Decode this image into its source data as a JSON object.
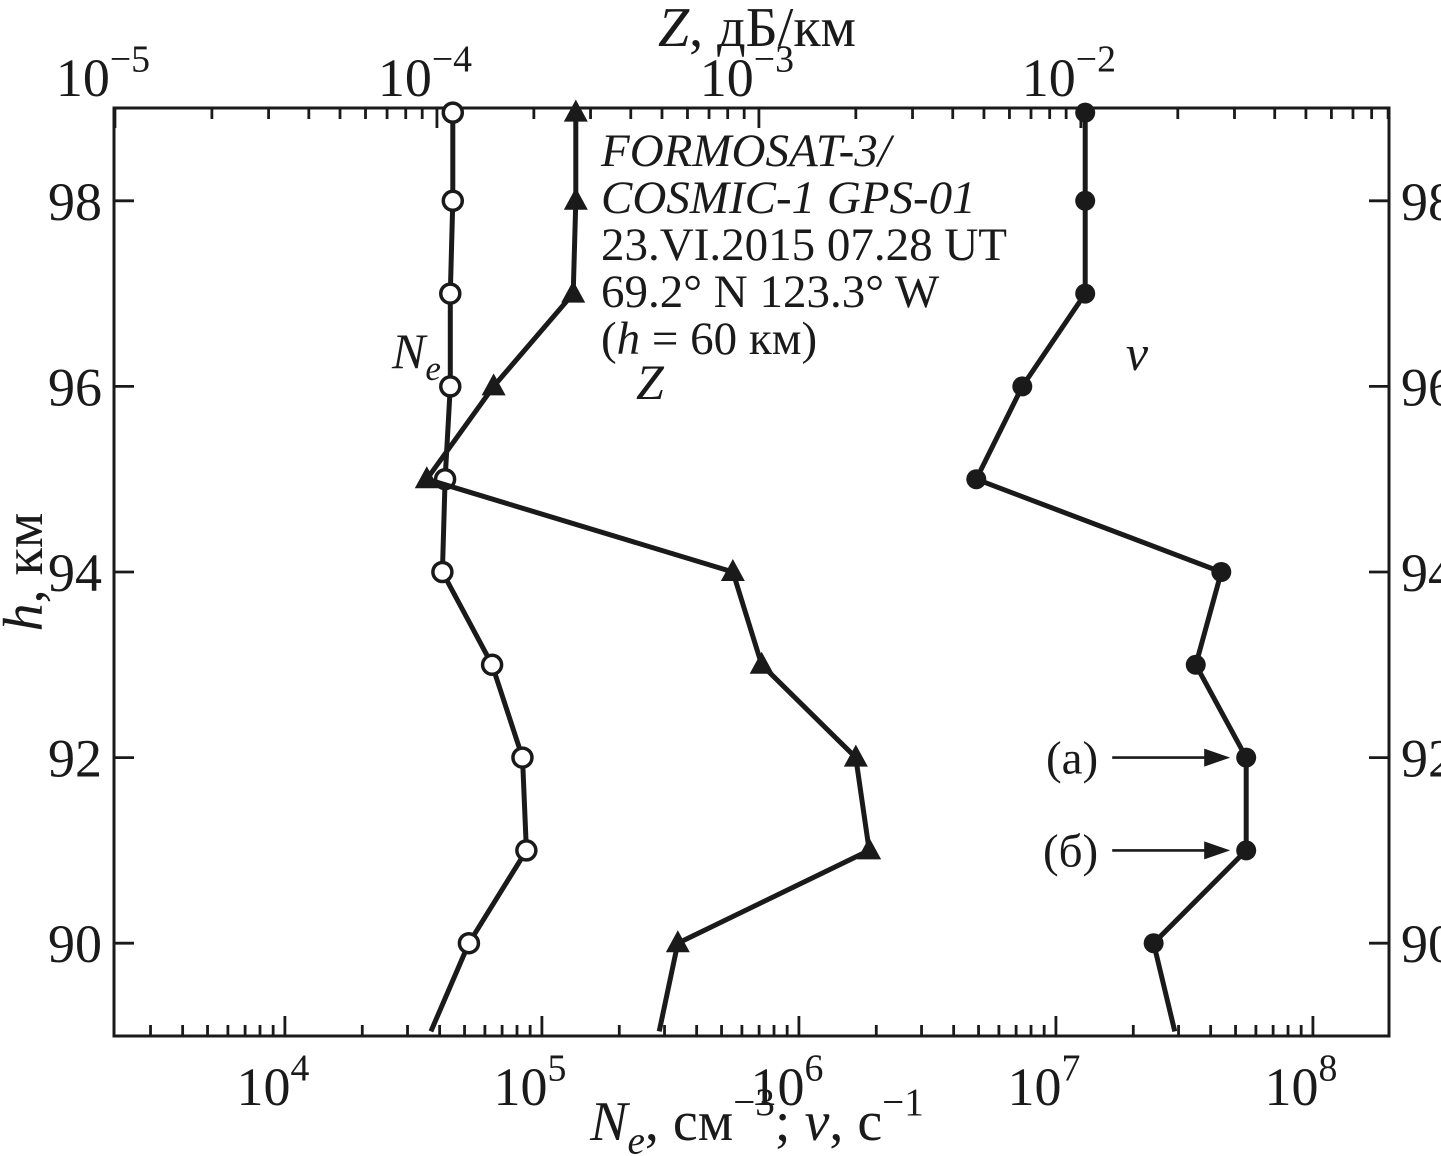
{
  "chart_data": {
    "type": "line",
    "title": "Z, дБ/км",
    "info_box": {
      "lines": [
        [
          {
            "t": "FORMOSAT-3/",
            "i": 1
          }
        ],
        [
          {
            "t": "COSMIC-1 GPS-01",
            "i": 1
          }
        ],
        [
          {
            "t": "23.VI.2015 07.28 UT"
          }
        ],
        [
          {
            "t": "69.2° N 123.3° W"
          }
        ],
        [
          {
            "t": "("
          },
          {
            "t": "h",
            "i": 1
          },
          {
            "t": " = 60 км)"
          }
        ]
      ]
    },
    "axes": {
      "x_bottom": {
        "scale": "log",
        "label_parts": [
          {
            "t": "N",
            "i": 1
          },
          {
            "t": "e",
            "i": 1,
            "sub": 1
          },
          {
            "t": ", см"
          },
          {
            "t": "−3",
            "sup": 1
          },
          {
            "t": "; "
          },
          {
            "t": "ν",
            "i": 1
          },
          {
            "t": ", с"
          },
          {
            "t": "−1",
            "sup": 1
          }
        ],
        "log_min": 3.335,
        "log_max": 8.296,
        "tick_exponents": [
          4,
          5,
          6,
          7,
          8
        ],
        "tick_base": "10"
      },
      "x_top": {
        "scale": "log",
        "label_parts": [
          {
            "t": "Z",
            "i": 1
          },
          {
            "t": ", дБ/км"
          }
        ],
        "log_min": -5.003,
        "log_max": -1.043,
        "tick_exponents": [
          -5,
          -4,
          -3,
          -2
        ],
        "tick_base": "10"
      },
      "y_left": {
        "label_parts": [
          {
            "t": "h",
            "i": 1
          },
          {
            "t": ", км"
          }
        ],
        "min": 89,
        "max": 99,
        "ticks": [
          90,
          92,
          94,
          96,
          98
        ]
      },
      "y_right": {
        "min": 89,
        "max": 99,
        "ticks": [
          90,
          92,
          94,
          96,
          98
        ]
      }
    },
    "series": [
      {
        "name": "Ne",
        "x_axis": "x_bottom",
        "marker": "open-circle",
        "label_parts": [
          {
            "t": "N",
            "i": 1
          },
          {
            "t": "e",
            "i": 1,
            "sub": 1
          }
        ],
        "points": [
          [
            98.95,
            45000
          ],
          [
            98,
            45000
          ],
          [
            97,
            44000
          ],
          [
            96,
            44000
          ],
          [
            95,
            42000
          ],
          [
            94,
            41000
          ],
          [
            93,
            64000
          ],
          [
            92,
            84000
          ],
          [
            91,
            87000
          ],
          [
            90,
            52000
          ],
          [
            89.05,
            37000
          ]
        ]
      },
      {
        "name": "Z",
        "x_axis": "x_top",
        "marker": "filled-triangle",
        "label_parts": [
          {
            "t": "Z",
            "i": 1
          }
        ],
        "points": [
          [
            98.95,
            0.00027
          ],
          [
            98,
            0.00027
          ],
          [
            97,
            0.000265
          ],
          [
            96,
            0.00015
          ],
          [
            95,
            9.3e-05
          ],
          [
            94,
            0.00083
          ],
          [
            93,
            0.00102
          ],
          [
            92,
            0.002
          ],
          [
            91,
            0.0022
          ],
          [
            90,
            0.00056
          ],
          [
            89.05,
            0.00049
          ]
        ]
      },
      {
        "name": "nu",
        "x_axis": "x_bottom",
        "marker": "filled-circle",
        "label_parts": [
          {
            "t": "ν",
            "i": 1
          }
        ],
        "points": [
          [
            98.95,
            13000000
          ],
          [
            98,
            13000000
          ],
          [
            97,
            13000000
          ],
          [
            96,
            7400000
          ],
          [
            95,
            4900000
          ],
          [
            94,
            44000000
          ],
          [
            93,
            35000000
          ],
          [
            92,
            55000000
          ],
          [
            91,
            55000000
          ],
          [
            90,
            24000000
          ],
          [
            89.05,
            29000000
          ]
        ]
      }
    ],
    "point_callouts": [
      {
        "label": "(а)",
        "series": "nu",
        "h": 92
      },
      {
        "label": "(б)",
        "series": "nu",
        "h": 91
      }
    ],
    "style": {
      "line_color": "#1a1a1a",
      "background": "#ffffff"
    }
  }
}
